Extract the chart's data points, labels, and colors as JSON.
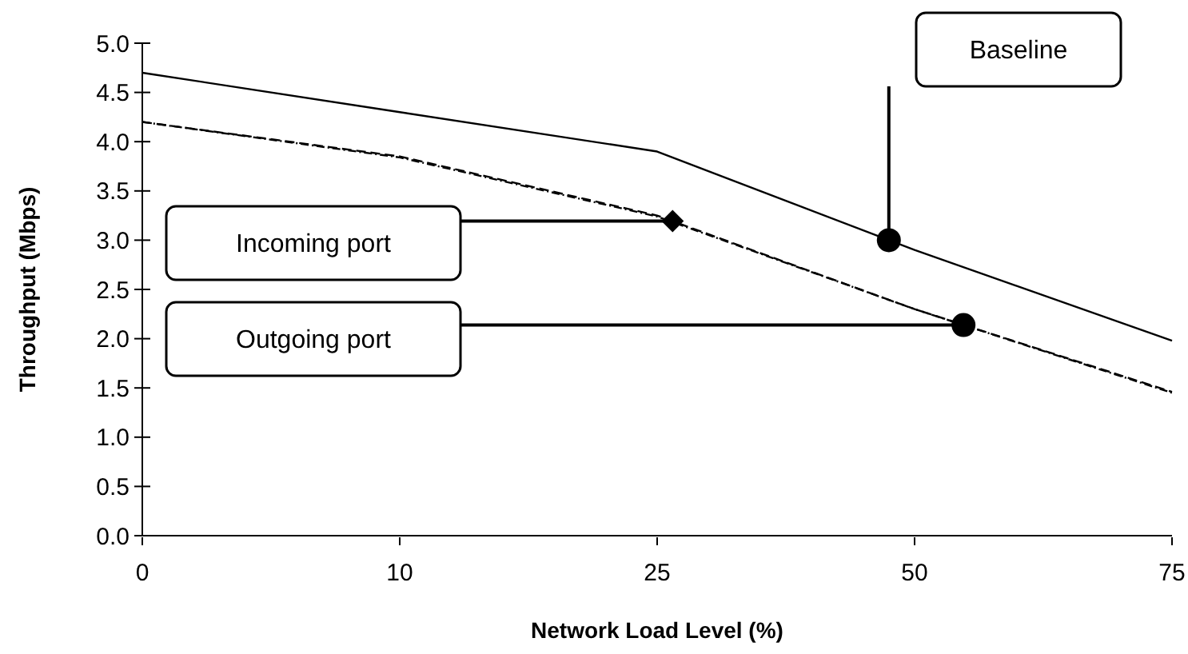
{
  "chart_data": {
    "type": "line",
    "xlabel": "Network Load Level (%)",
    "ylabel": "Throughput (Mbps)",
    "categories": [
      "0",
      "10",
      "25",
      "50",
      "75"
    ],
    "ylim": [
      0,
      5
    ],
    "yticks": [
      {
        "value": 0,
        "label": "0.0"
      },
      {
        "value": 0.5,
        "label": "0.5"
      },
      {
        "value": 1,
        "label": "1.0"
      },
      {
        "value": 1.5,
        "label": "1.5"
      },
      {
        "value": 2,
        "label": "2.0"
      },
      {
        "value": 2.5,
        "label": "2.5"
      },
      {
        "value": 3,
        "label": "3.0"
      },
      {
        "value": 3.5,
        "label": "3.5"
      },
      {
        "value": 4,
        "label": "4.0"
      },
      {
        "value": 4.5,
        "label": "4.5"
      },
      {
        "value": 5,
        "label": "5.0"
      }
    ],
    "legend": false,
    "series": [
      {
        "name": "Baseline",
        "color": "#000000",
        "line_style": "solid",
        "values": [
          4.7,
          4.3,
          3.9,
          2.9,
          1.98
        ]
      },
      {
        "name": "Incoming port",
        "color": "#000000",
        "line_style": "dashed",
        "values": [
          4.2,
          3.85,
          3.25,
          2.3,
          1.46
        ]
      },
      {
        "name": "Outgoing port",
        "color": "#000000",
        "line_style": "dotted",
        "values": [
          4.2,
          3.84,
          3.24,
          2.3,
          1.45
        ]
      }
    ]
  }
}
